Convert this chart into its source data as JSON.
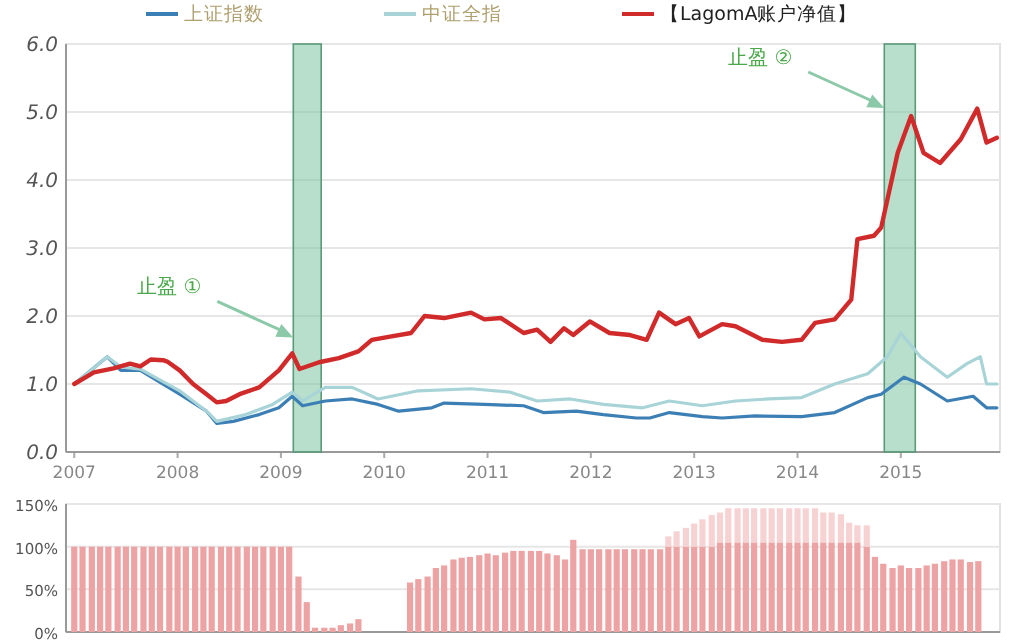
{
  "chart_data": [
    {
      "type": "line",
      "xlim": [
        2006.92,
        2015.96
      ],
      "xticks": [
        2007,
        2008,
        2009,
        2010,
        2011,
        2012,
        2013,
        2014,
        2015
      ],
      "ylim": [
        0,
        6
      ],
      "yticks": [
        {
          "value": 0,
          "label": "0.0"
        },
        {
          "value": 1,
          "label": "1.0"
        },
        {
          "value": 2,
          "label": "2.0"
        },
        {
          "value": 3,
          "label": "3.0"
        },
        {
          "value": 4,
          "label": "4.0"
        },
        {
          "value": 5,
          "label": "5.0"
        },
        {
          "value": 6,
          "label": "6.0"
        }
      ],
      "grid": "y",
      "legend": "top",
      "series": [
        {
          "name": "上证指数",
          "color": "#3c7fb5",
          "x": [
            2007.0,
            2007.32,
            2007.45,
            2007.64,
            2008.02,
            2008.28,
            2008.38,
            2008.54,
            2008.79,
            2008.98,
            2009.11,
            2009.21,
            2009.43,
            2009.69,
            2009.94,
            2010.14,
            2010.46,
            2010.58,
            2010.97,
            2011.35,
            2011.54,
            2011.86,
            2012.12,
            2012.44,
            2012.57,
            2012.76,
            2013.08,
            2013.27,
            2013.59,
            2014.04,
            2014.36,
            2014.68,
            2014.81,
            2015.03,
            2015.19,
            2015.45,
            2015.7,
            2015.83,
            2015.93
          ],
          "values": [
            1.0,
            1.4,
            1.2,
            1.2,
            0.85,
            0.6,
            0.42,
            0.45,
            0.55,
            0.65,
            0.82,
            0.68,
            0.75,
            0.78,
            0.7,
            0.6,
            0.65,
            0.72,
            0.7,
            0.68,
            0.58,
            0.6,
            0.55,
            0.5,
            0.5,
            0.58,
            0.52,
            0.5,
            0.53,
            0.52,
            0.58,
            0.8,
            0.85,
            1.1,
            1.0,
            0.75,
            0.82,
            0.65,
            0.65
          ]
        },
        {
          "name": "中证全指",
          "color": "#a8d4d8",
          "x": [
            2007.0,
            2007.32,
            2007.45,
            2007.64,
            2008.02,
            2008.28,
            2008.38,
            2008.66,
            2008.92,
            2009.11,
            2009.21,
            2009.43,
            2009.69,
            2009.94,
            2010.33,
            2010.84,
            2011.22,
            2011.48,
            2011.8,
            2012.12,
            2012.5,
            2012.76,
            2013.08,
            2013.4,
            2013.72,
            2014.04,
            2014.36,
            2014.68,
            2014.87,
            2015.0,
            2015.19,
            2015.45,
            2015.64,
            2015.77,
            2015.83,
            2015.93
          ],
          "values": [
            1.0,
            1.4,
            1.25,
            1.22,
            0.9,
            0.6,
            0.45,
            0.55,
            0.7,
            0.88,
            0.75,
            0.95,
            0.95,
            0.78,
            0.9,
            0.93,
            0.88,
            0.75,
            0.78,
            0.7,
            0.65,
            0.75,
            0.68,
            0.75,
            0.78,
            0.8,
            1.0,
            1.15,
            1.4,
            1.75,
            1.4,
            1.1,
            1.3,
            1.4,
            1.0,
            1.0
          ]
        },
        {
          "name": "【LagomA账户净值】",
          "color": "#d02a2a",
          "x": [
            2007.0,
            2007.19,
            2007.38,
            2007.54,
            2007.64,
            2007.74,
            2007.86,
            2007.9,
            2008.02,
            2008.15,
            2008.28,
            2008.38,
            2008.47,
            2008.6,
            2008.79,
            2008.98,
            2009.11,
            2009.18,
            2009.37,
            2009.56,
            2009.75,
            2009.88,
            2010.07,
            2010.26,
            2010.39,
            2010.58,
            2010.84,
            2010.97,
            2011.13,
            2011.35,
            2011.48,
            2011.61,
            2011.74,
            2011.83,
            2011.99,
            2012.18,
            2012.38,
            2012.54,
            2012.66,
            2012.82,
            2012.95,
            2013.05,
            2013.27,
            2013.4,
            2013.66,
            2013.85,
            2014.04,
            2014.17,
            2014.36,
            2014.52,
            2014.58,
            2014.74,
            2014.81,
            2014.97,
            2015.1,
            2015.22,
            2015.38,
            2015.58,
            2015.74,
            2015.83,
            2015.93
          ],
          "values": [
            1.0,
            1.17,
            1.23,
            1.3,
            1.26,
            1.36,
            1.35,
            1.33,
            1.2,
            1.0,
            0.85,
            0.73,
            0.75,
            0.85,
            0.95,
            1.2,
            1.45,
            1.22,
            1.32,
            1.38,
            1.48,
            1.65,
            1.7,
            1.75,
            2.0,
            1.97,
            2.05,
            1.95,
            1.97,
            1.75,
            1.8,
            1.62,
            1.82,
            1.72,
            1.92,
            1.75,
            1.72,
            1.65,
            2.05,
            1.88,
            1.97,
            1.7,
            1.88,
            1.85,
            1.65,
            1.62,
            1.65,
            1.9,
            1.95,
            2.24,
            3.13,
            3.18,
            3.3,
            4.4,
            4.94,
            4.4,
            4.25,
            4.6,
            5.05,
            4.55,
            4.62
          ]
        }
      ],
      "bands": [
        {
          "axis": "x",
          "from": 2009.12,
          "to": 2009.39,
          "color": "#7cc4a0",
          "label": "止盈 ①"
        },
        {
          "axis": "x",
          "from": 2014.84,
          "to": 2015.14,
          "color": "#7cc4a0",
          "label": "止盈 ②"
        }
      ]
    },
    {
      "type": "bar",
      "stacked": true,
      "tick_labels": "y",
      "grid": "y",
      "xlim": [
        2006.92,
        2015.96
      ],
      "ylim": [
        0,
        150
      ],
      "yticks": [
        {
          "value": 0,
          "label": "0%"
        },
        {
          "value": 50,
          "label": "50%"
        },
        {
          "value": 100,
          "label": "100%"
        },
        {
          "value": 150,
          "label": "150%"
        }
      ],
      "x": [
        2007.0,
        2007.08,
        2007.17,
        2007.25,
        2007.33,
        2007.42,
        2007.5,
        2007.58,
        2007.67,
        2007.75,
        2007.83,
        2007.92,
        2008.0,
        2008.08,
        2008.17,
        2008.25,
        2008.33,
        2008.42,
        2008.5,
        2008.58,
        2008.67,
        2008.75,
        2008.83,
        2008.92,
        2009.0,
        2009.08,
        2009.17,
        2009.25,
        2009.33,
        2009.42,
        2009.5,
        2009.58,
        2009.67,
        2009.75,
        2009.83,
        2009.92,
        2010.0,
        2010.08,
        2010.17,
        2010.25,
        2010.33,
        2010.42,
        2010.5,
        2010.58,
        2010.67,
        2010.75,
        2010.83,
        2010.92,
        2011.0,
        2011.08,
        2011.17,
        2011.25,
        2011.33,
        2011.42,
        2011.5,
        2011.58,
        2011.67,
        2011.75,
        2011.83,
        2011.92,
        2012.0,
        2012.08,
        2012.17,
        2012.25,
        2012.33,
        2012.42,
        2012.5,
        2012.58,
        2012.67,
        2012.75,
        2012.83,
        2012.92,
        2013.0,
        2013.08,
        2013.17,
        2013.25,
        2013.33,
        2013.42,
        2013.5,
        2013.58,
        2013.67,
        2013.75,
        2013.83,
        2013.92,
        2014.0,
        2014.08,
        2014.17,
        2014.25,
        2014.33,
        2014.42,
        2014.5,
        2014.58,
        2014.67,
        2014.75,
        2014.83,
        2014.92,
        2015.0,
        2015.08,
        2015.17,
        2015.25,
        2015.33,
        2015.42,
        2015.5,
        2015.58,
        2015.67,
        2015.75
      ],
      "series": [
        {
          "color": "#eda3a3",
          "values": [
            100,
            100,
            100,
            100,
            100,
            100,
            100,
            100,
            100,
            100,
            100,
            100,
            100,
            100,
            100,
            100,
            100,
            100,
            100,
            100,
            100,
            100,
            100,
            100,
            100,
            100,
            65,
            35,
            5,
            5,
            5,
            8,
            10,
            15,
            null,
            null,
            null,
            null,
            null,
            58,
            62,
            65,
            75,
            78,
            85,
            87,
            88,
            90,
            92,
            90,
            93,
            95,
            95,
            95,
            95,
            92,
            90,
            85,
            108,
            97,
            97,
            97,
            97,
            97,
            97,
            97,
            97,
            97,
            97,
            100,
            100,
            100,
            100,
            100,
            100,
            105,
            105,
            105,
            105,
            105,
            105,
            105,
            105,
            105,
            105,
            105,
            105,
            105,
            105,
            105,
            105,
            105,
            100,
            88,
            80,
            75,
            78,
            75,
            75,
            78,
            80,
            83,
            85,
            85,
            82,
            83
          ]
        },
        {
          "color": "#f7d2d2",
          "values": [
            null,
            null,
            null,
            null,
            null,
            null,
            null,
            null,
            null,
            null,
            null,
            null,
            null,
            null,
            null,
            null,
            null,
            null,
            null,
            null,
            null,
            null,
            null,
            null,
            null,
            null,
            null,
            null,
            null,
            null,
            null,
            null,
            null,
            null,
            null,
            null,
            null,
            null,
            null,
            null,
            null,
            null,
            null,
            null,
            null,
            null,
            null,
            null,
            null,
            null,
            null,
            null,
            null,
            null,
            null,
            null,
            null,
            null,
            null,
            null,
            null,
            null,
            null,
            null,
            null,
            null,
            null,
            null,
            null,
            12,
            18,
            22,
            27,
            32,
            37,
            35,
            40,
            40,
            40,
            40,
            40,
            40,
            40,
            40,
            40,
            40,
            40,
            35,
            35,
            33,
            23,
            20,
            25,
            null,
            null,
            null,
            null,
            null,
            null,
            null,
            null,
            null,
            null,
            null,
            null,
            null
          ]
        }
      ]
    }
  ]
}
